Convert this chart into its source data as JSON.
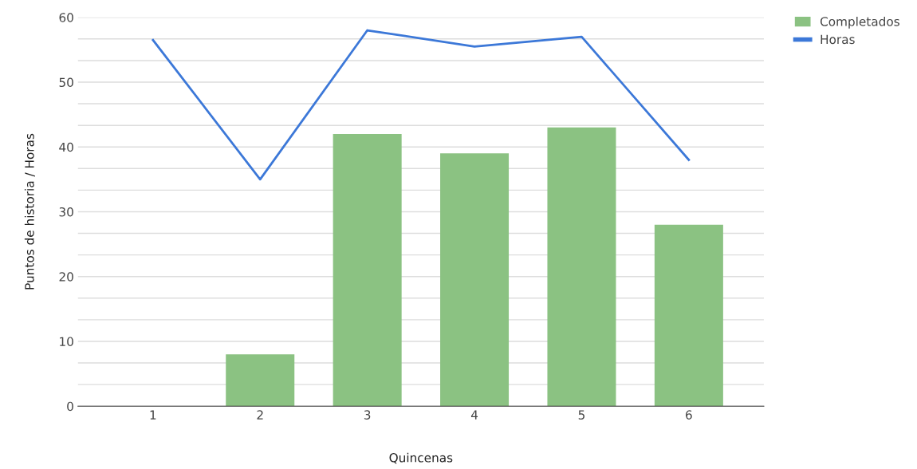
{
  "chart_data": {
    "type": "bar",
    "xlabel": "Quincenas",
    "ylabel": "Puntos de historia / Horas",
    "categories": [
      "1",
      "2",
      "3",
      "4",
      "5",
      "6"
    ],
    "series": [
      {
        "name": "Completados",
        "color": "#8bc282",
        "values": [
          null,
          8,
          42,
          39,
          43,
          28
        ]
      },
      {
        "name": "Horas",
        "type": "line",
        "color": "#3c78d8",
        "values": [
          56.5,
          35,
          58,
          55.5,
          57,
          38
        ]
      }
    ],
    "ylim": [
      0,
      60
    ],
    "yticks": [
      0,
      {
        "value": 3.33,
        "label": null
      },
      {
        "value": 6.67,
        "label": null
      },
      10,
      {
        "value": 13.33,
        "label": null
      },
      {
        "value": 16.67,
        "label": null
      },
      20,
      {
        "value": 23.33,
        "label": null
      },
      {
        "value": 26.67,
        "label": null
      },
      30,
      {
        "value": 33.33,
        "label": null
      },
      {
        "value": 36.67,
        "label": null
      },
      40,
      {
        "value": 43.33,
        "label": null
      },
      {
        "value": 46.67,
        "label": null
      },
      50,
      {
        "value": 53.33,
        "label": null
      },
      {
        "value": 56.67,
        "label": null
      },
      60
    ],
    "grid": "y",
    "legend": "top right",
    "marker": "none",
    "line_style": "solid"
  }
}
